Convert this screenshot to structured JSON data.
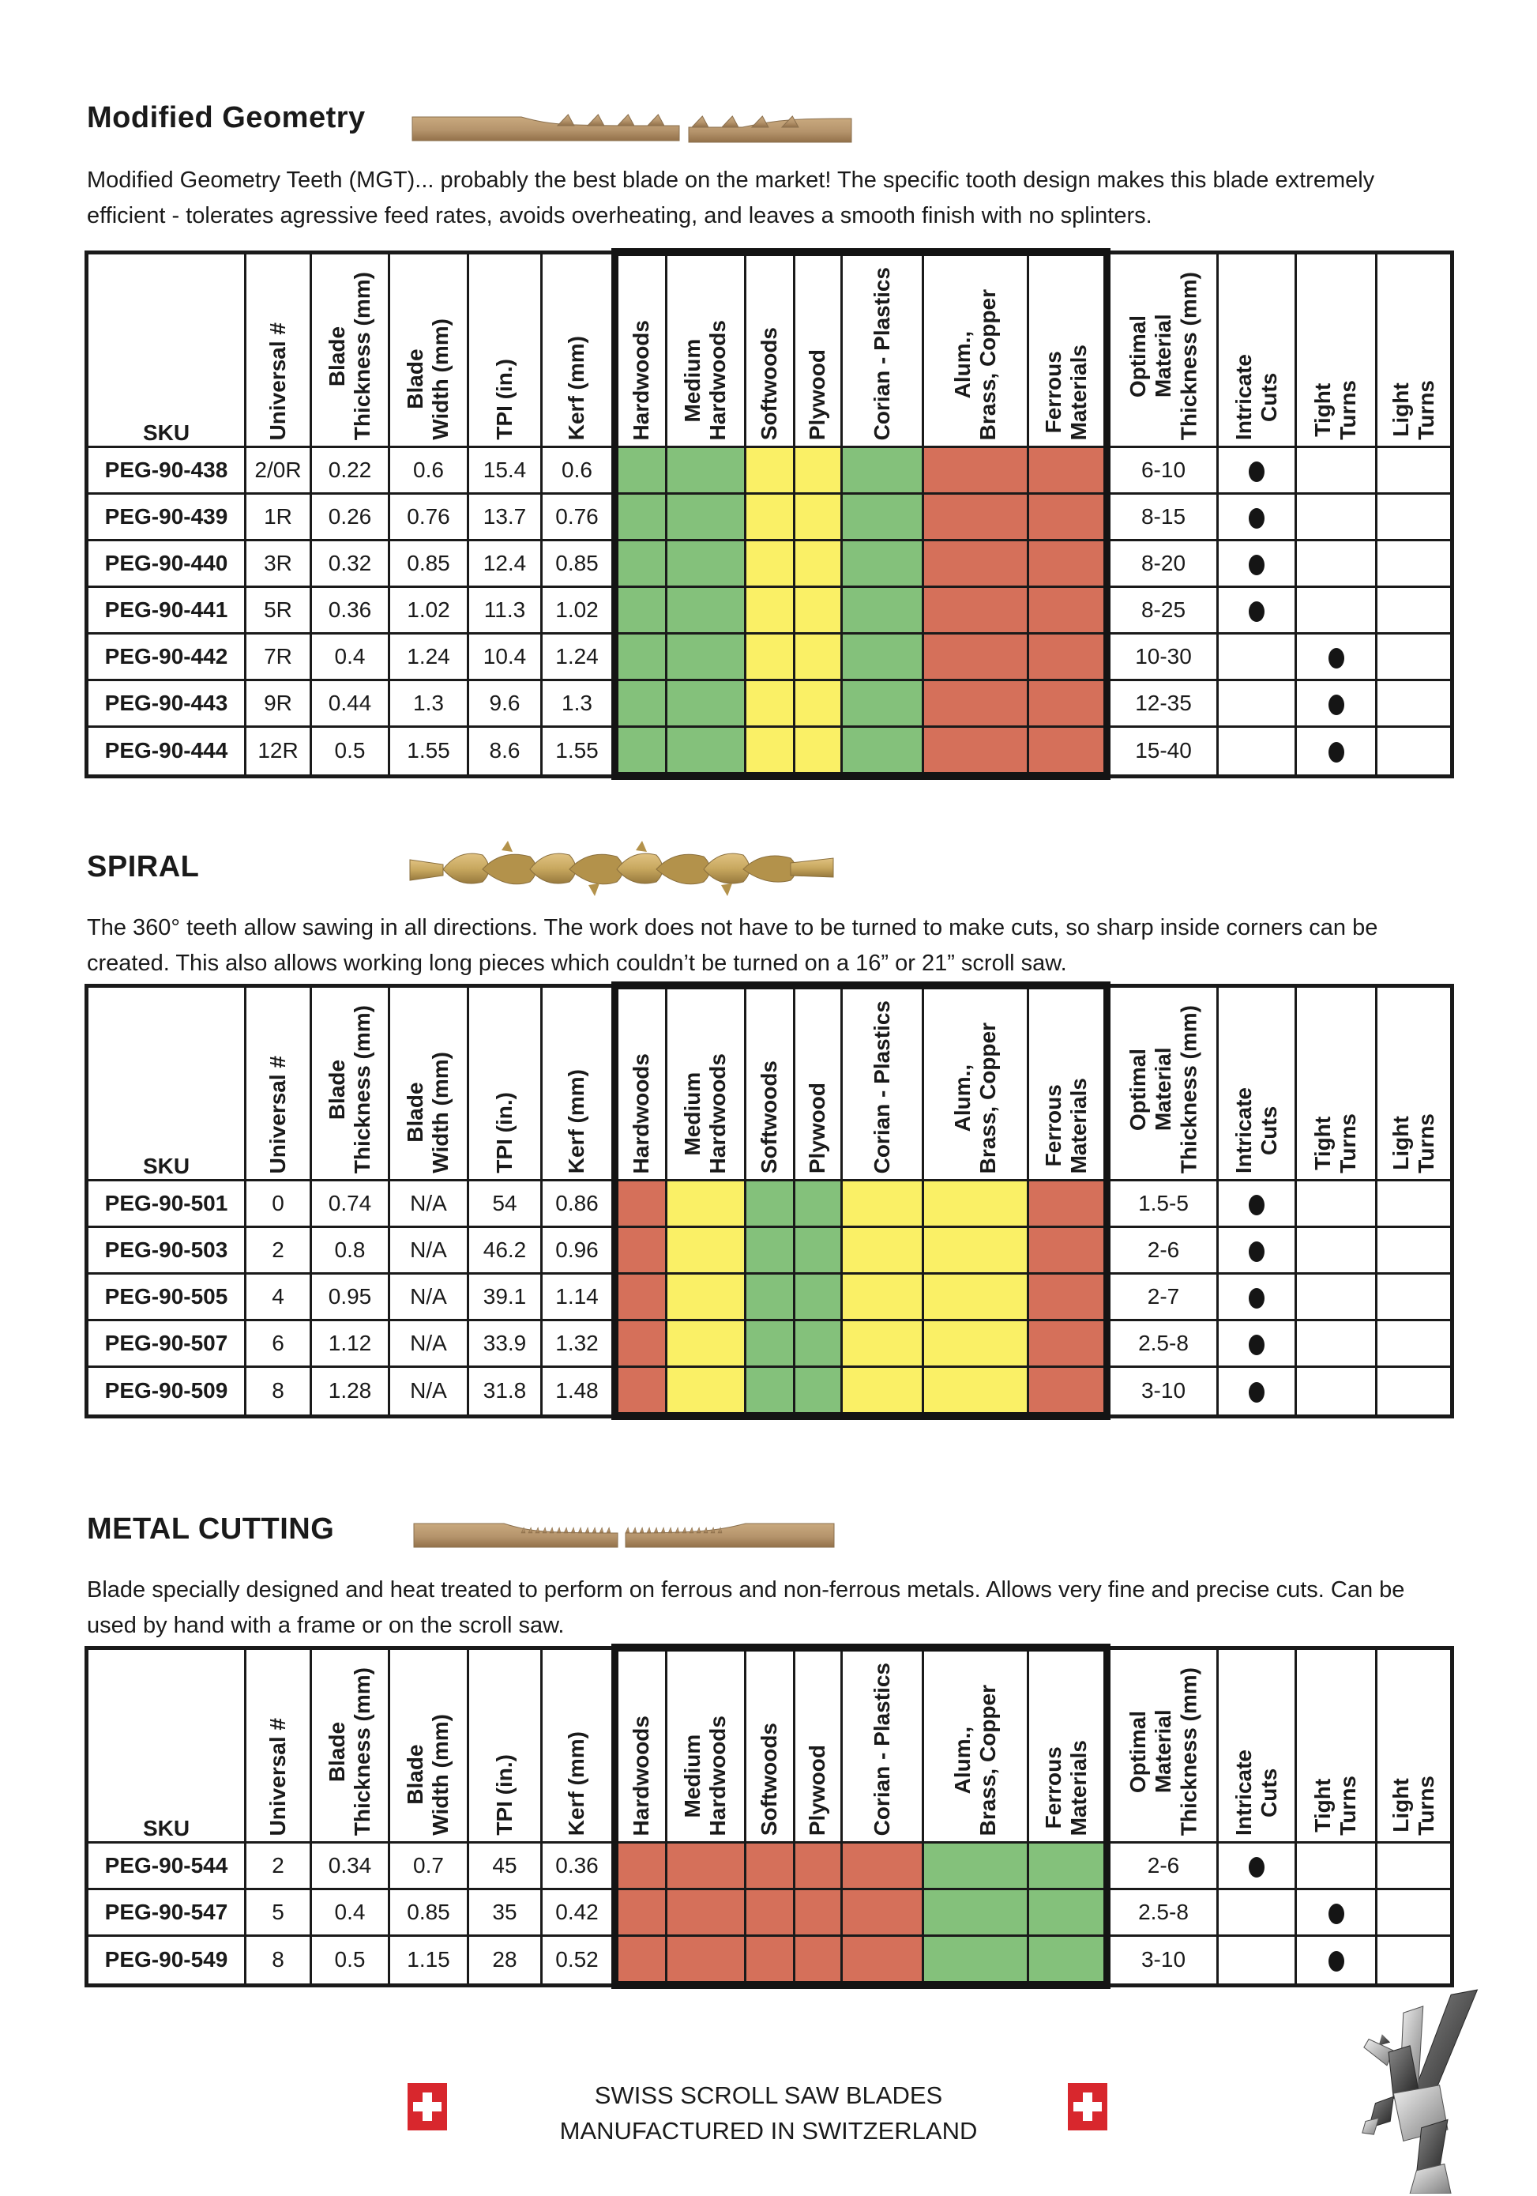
{
  "colors": {
    "G": "#84c17b",
    "Y": "#faf066",
    "R": "#d5705a",
    "border": "#1a1a1a",
    "blade_tan": "#b5946c",
    "spiral_gold": "#c8a85f",
    "flag_red": "#d8272d"
  },
  "icons": {
    "mgt_blade": "mgt-blade-icon",
    "spiral_blade": "spiral-blade-icon",
    "metal_blade": "metal-blade-icon",
    "swiss_flag": "swiss-flag-icon",
    "pegasus": "pegasus-logo-icon",
    "dot": "capability-dot-icon"
  },
  "columns": [
    {
      "id": "sku",
      "label": "SKU"
    },
    {
      "id": "universal-number",
      "label": "Universal #"
    },
    {
      "id": "blade-thickness",
      "label": "Blade\nThickness (mm)"
    },
    {
      "id": "blade-width",
      "label": "Blade\nWidth (mm)"
    },
    {
      "id": "tpi",
      "label": "TPI (in.)"
    },
    {
      "id": "kerf",
      "label": "Kerf (mm)"
    },
    {
      "id": "hardwoods",
      "label": "Hardwoods"
    },
    {
      "id": "medium-hardwoods",
      "label": "Medium\nHardwoods"
    },
    {
      "id": "softwoods",
      "label": "Softwoods"
    },
    {
      "id": "plywood",
      "label": "Plywood"
    },
    {
      "id": "corian-plastics",
      "label": "Corian  - Plastics"
    },
    {
      "id": "alum-brass-copper",
      "label": "Alum.,\nBrass, Copper"
    },
    {
      "id": "ferrous-materials",
      "label": "Ferrous\nMaterials"
    },
    {
      "id": "optimal-material-thickness",
      "label": "Optimal\nMaterial\nThickness (mm)"
    },
    {
      "id": "intricate-cuts",
      "label": "Intricate\nCuts"
    },
    {
      "id": "tight-turns",
      "label": "Tight\nTurns"
    },
    {
      "id": "light-turns",
      "label": "Light\nTurns"
    }
  ],
  "sections": [
    {
      "id": "modified-geometry",
      "title": "Modified Geometry",
      "description": "Modified Geometry Teeth (MGT)... probably the best blade on the market! The specific tooth design makes this blade extremely\nefficient - tolerates agressive feed rates, avoids overheating, and leaves a smooth finish with no splinters.",
      "rows": [
        {
          "sku": "PEG-90-438",
          "values": [
            "2/0R",
            "0.22",
            "0.6",
            "15.4",
            "0.6"
          ],
          "materials": [
            "G",
            "G",
            "Y",
            "Y",
            "G",
            "R",
            "R"
          ],
          "optimal": "6-10",
          "dots": [
            true,
            false,
            false
          ]
        },
        {
          "sku": "PEG-90-439",
          "values": [
            "1R",
            "0.26",
            "0.76",
            "13.7",
            "0.76"
          ],
          "materials": [
            "G",
            "G",
            "Y",
            "Y",
            "G",
            "R",
            "R"
          ],
          "optimal": "8-15",
          "dots": [
            true,
            false,
            false
          ]
        },
        {
          "sku": "PEG-90-440",
          "values": [
            "3R",
            "0.32",
            "0.85",
            "12.4",
            "0.85"
          ],
          "materials": [
            "G",
            "G",
            "Y",
            "Y",
            "G",
            "R",
            "R"
          ],
          "optimal": "8-20",
          "dots": [
            true,
            false,
            false
          ]
        },
        {
          "sku": "PEG-90-441",
          "values": [
            "5R",
            "0.36",
            "1.02",
            "11.3",
            "1.02"
          ],
          "materials": [
            "G",
            "G",
            "Y",
            "Y",
            "G",
            "R",
            "R"
          ],
          "optimal": "8-25",
          "dots": [
            true,
            false,
            false
          ]
        },
        {
          "sku": "PEG-90-442",
          "values": [
            "7R",
            "0.4",
            "1.24",
            "10.4",
            "1.24"
          ],
          "materials": [
            "G",
            "G",
            "Y",
            "Y",
            "G",
            "R",
            "R"
          ],
          "optimal": "10-30",
          "dots": [
            false,
            true,
            false
          ]
        },
        {
          "sku": "PEG-90-443",
          "values": [
            "9R",
            "0.44",
            "1.3",
            "9.6",
            "1.3"
          ],
          "materials": [
            "G",
            "G",
            "Y",
            "Y",
            "G",
            "R",
            "R"
          ],
          "optimal": "12-35",
          "dots": [
            false,
            true,
            false
          ]
        },
        {
          "sku": "PEG-90-444",
          "values": [
            "12R",
            "0.5",
            "1.55",
            "8.6",
            "1.55"
          ],
          "materials": [
            "G",
            "G",
            "Y",
            "Y",
            "G",
            "R",
            "R"
          ],
          "optimal": "15-40",
          "dots": [
            false,
            true,
            false
          ]
        }
      ]
    },
    {
      "id": "spiral",
      "title": "SPIRAL",
      "description": "The 360° teeth allow sawing in all directions. The work does not have to be turned to make cuts, so sharp inside corners can be\ncreated. This also allows working long pieces which couldn’t be turned on a 16” or 21” scroll saw.",
      "rows": [
        {
          "sku": "PEG-90-501",
          "values": [
            "0",
            "0.74",
            "N/A",
            "54",
            "0.86"
          ],
          "materials": [
            "R",
            "Y",
            "G",
            "G",
            "Y",
            "Y",
            "R"
          ],
          "optimal": "1.5-5",
          "dots": [
            true,
            false,
            false
          ]
        },
        {
          "sku": "PEG-90-503",
          "values": [
            "2",
            "0.8",
            "N/A",
            "46.2",
            "0.96"
          ],
          "materials": [
            "R",
            "Y",
            "G",
            "G",
            "Y",
            "Y",
            "R"
          ],
          "optimal": "2-6",
          "dots": [
            true,
            false,
            false
          ]
        },
        {
          "sku": "PEG-90-505",
          "values": [
            "4",
            "0.95",
            "N/A",
            "39.1",
            "1.14"
          ],
          "materials": [
            "R",
            "Y",
            "G",
            "G",
            "Y",
            "Y",
            "R"
          ],
          "optimal": "2-7",
          "dots": [
            true,
            false,
            false
          ]
        },
        {
          "sku": "PEG-90-507",
          "values": [
            "6",
            "1.12",
            "N/A",
            "33.9",
            "1.32"
          ],
          "materials": [
            "R",
            "Y",
            "G",
            "G",
            "Y",
            "Y",
            "R"
          ],
          "optimal": "2.5-8",
          "dots": [
            true,
            false,
            false
          ]
        },
        {
          "sku": "PEG-90-509",
          "values": [
            "8",
            "1.28",
            "N/A",
            "31.8",
            "1.48"
          ],
          "materials": [
            "R",
            "Y",
            "G",
            "G",
            "Y",
            "Y",
            "R"
          ],
          "optimal": "3-10",
          "dots": [
            true,
            false,
            false
          ]
        }
      ]
    },
    {
      "id": "metal-cutting",
      "title": "METAL CUTTING",
      "description": "Blade specially designed and heat treated to perform on ferrous and non-ferrous metals. Allows very fine and precise cuts. Can be\nused by hand with a frame or on the scroll saw.",
      "rows": [
        {
          "sku": "PEG-90-544",
          "values": [
            "2",
            "0.34",
            "0.7",
            "45",
            "0.36"
          ],
          "materials": [
            "R",
            "R",
            "R",
            "R",
            "R",
            "G",
            "G"
          ],
          "optimal": "2-6",
          "dots": [
            true,
            false,
            false
          ]
        },
        {
          "sku": "PEG-90-547",
          "values": [
            "5",
            "0.4",
            "0.85",
            "35",
            "0.42"
          ],
          "materials": [
            "R",
            "R",
            "R",
            "R",
            "R",
            "G",
            "G"
          ],
          "optimal": "2.5-8",
          "dots": [
            false,
            true,
            false
          ]
        },
        {
          "sku": "PEG-90-549",
          "values": [
            "8",
            "0.5",
            "1.15",
            "28",
            "0.52"
          ],
          "materials": [
            "R",
            "R",
            "R",
            "R",
            "R",
            "G",
            "G"
          ],
          "optimal": "3-10",
          "dots": [
            false,
            true,
            false
          ]
        }
      ]
    }
  ],
  "footer": {
    "line1": "SWISS SCROLL SAW BLADES",
    "line2": "MANUFACTURED IN SWITZERLAND"
  }
}
